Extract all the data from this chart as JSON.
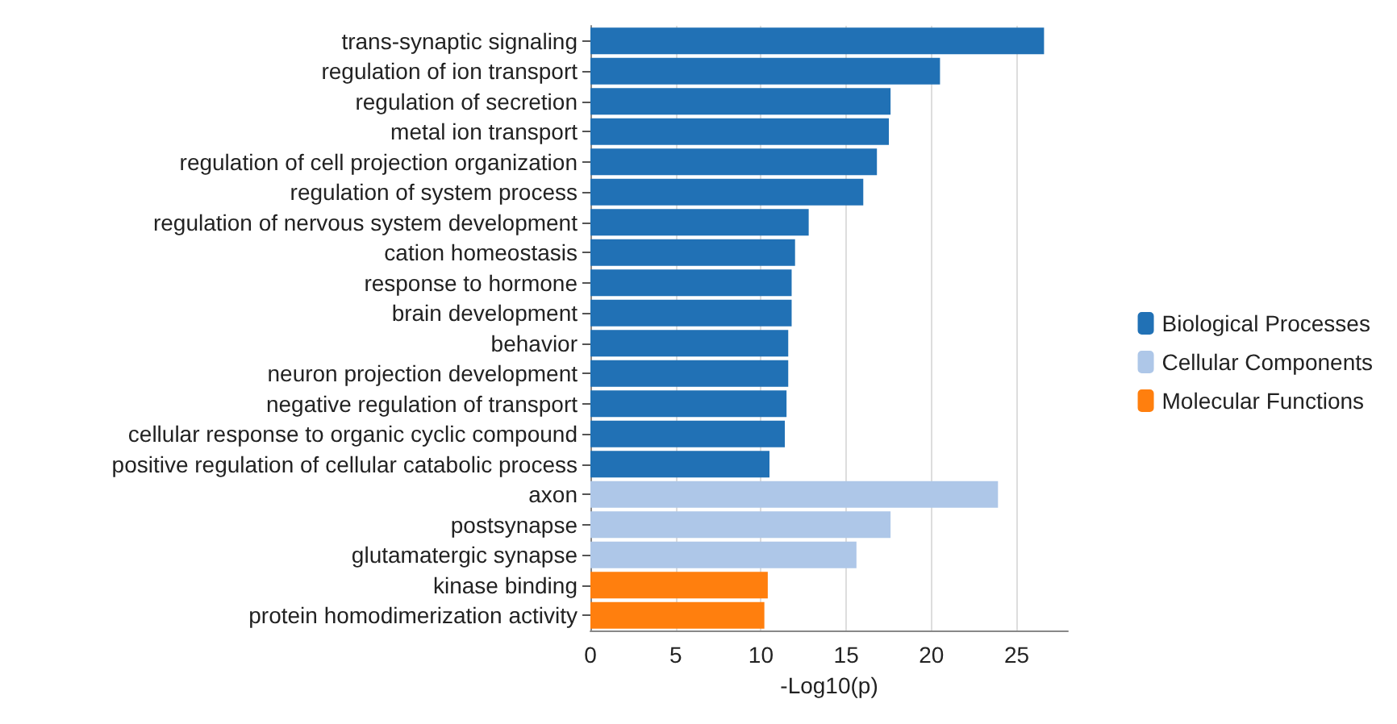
{
  "chart_data": {
    "type": "bar",
    "orientation": "horizontal",
    "xlabel": "-Log10(p)",
    "categories": [
      "trans-synaptic signaling",
      "regulation of ion transport",
      "regulation of secretion",
      "metal ion transport",
      "regulation of cell projection organization",
      "regulation of system process",
      "regulation of nervous system development",
      "cation homeostasis",
      "response to hormone",
      "brain development",
      "behavior",
      "neuron projection development",
      "negative regulation of transport",
      "cellular response to organic cyclic compound",
      "positive regulation of cellular catabolic process",
      "axon",
      "postsynapse",
      "glutamatergic synapse",
      "kinase binding",
      "protein homodimerization activity"
    ],
    "series": [
      {
        "name": "Biological Processes",
        "color": "#2171b5",
        "values": [
          26.6,
          20.5,
          17.6,
          17.5,
          16.8,
          16.0,
          12.8,
          12.0,
          11.8,
          11.8,
          11.6,
          11.6,
          11.5,
          11.4,
          10.5,
          null,
          null,
          null,
          null,
          null
        ]
      },
      {
        "name": "Cellular Components",
        "color": "#aec7e8",
        "values": [
          null,
          null,
          null,
          null,
          null,
          null,
          null,
          null,
          null,
          null,
          null,
          null,
          null,
          null,
          null,
          23.9,
          17.6,
          15.6,
          null,
          null
        ]
      },
      {
        "name": "Molecular Functions",
        "color": "#ff7f0e",
        "values": [
          null,
          null,
          null,
          null,
          null,
          null,
          null,
          null,
          null,
          null,
          null,
          null,
          null,
          null,
          null,
          null,
          null,
          null,
          10.4,
          10.2
        ]
      }
    ],
    "xlim": [
      0,
      28
    ],
    "xticks": [
      0,
      5,
      10,
      15,
      20,
      25
    ],
    "grid": "x",
    "legend": "right"
  }
}
